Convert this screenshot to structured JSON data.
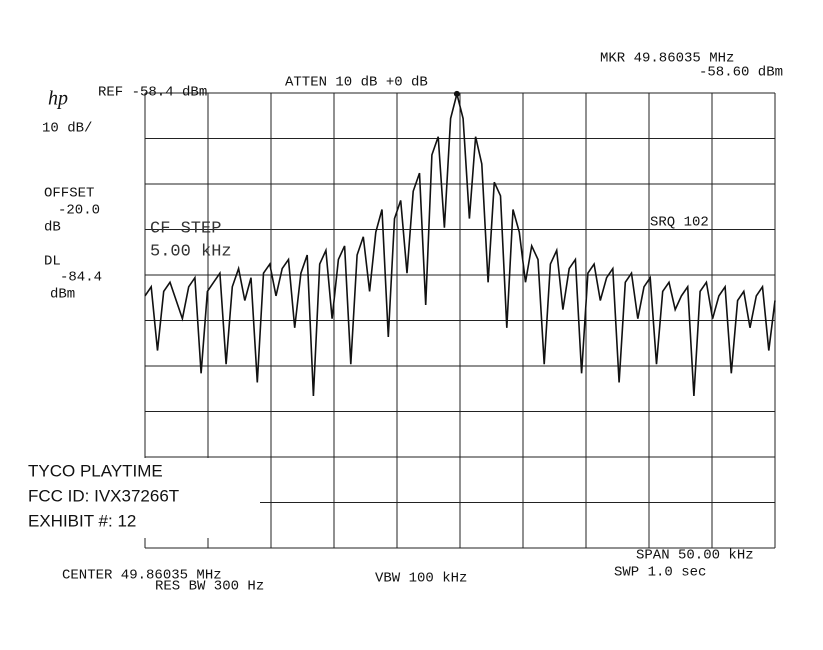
{
  "chart_data": {
    "type": "line",
    "header": {
      "logo": "hp",
      "ref": "REF -58.4 dBm",
      "atten": "ATTEN 10 dB +0 dB",
      "marker_freq": "MKR 49.86035 MHz",
      "marker_level": "-58.60 dBm"
    },
    "left": {
      "scale": "10 dB/",
      "offset_label": "OFFSET",
      "offset_value": "-20.0",
      "offset_unit": "dB",
      "dl_label": "DL",
      "dl_value": "-84.4",
      "dl_unit": "dBm"
    },
    "cf_step_label": "CF STEP",
    "cf_step_value": "5.00 kHz",
    "srq": "SRQ 102",
    "footer": {
      "center": "CENTER 49.86035 MHz",
      "res_bw": "RES BW 300 Hz",
      "vbw": "VBW 100 kHz",
      "span": "SPAN 50.00 kHz",
      "swp": "SWP 1.0 sec"
    },
    "exhibit": [
      "TYCO PLAYTIME",
      "FCC ID:  IVX37266T",
      "EXHIBIT #:  12"
    ],
    "color": "#111111",
    "ylim": [
      -158.4,
      -58.4
    ],
    "values": [
      -103,
      -101,
      -115,
      -102,
      -100,
      -104,
      -108,
      -101,
      -99,
      -120,
      -102,
      -100,
      -98,
      -118,
      -101,
      -97,
      -104,
      -99,
      -122,
      -98,
      -96,
      -103,
      -97,
      -95,
      -110,
      -98,
      -94,
      -125,
      -96,
      -93,
      -108,
      -95,
      -92,
      -118,
      -94,
      -90,
      -102,
      -89,
      -84,
      -112,
      -86,
      -82,
      -98,
      -80,
      -76,
      -105,
      -72,
      -68,
      -88,
      -64,
      -58.6,
      -64,
      -86,
      -68,
      -74,
      -100,
      -78,
      -81,
      -110,
      -84,
      -89,
      -100,
      -92,
      -95,
      -118,
      -96,
      -93,
      -106,
      -97,
      -95,
      -120,
      -98,
      -96,
      -104,
      -99,
      -97,
      -122,
      -100,
      -98,
      -108,
      -101,
      -99,
      -118,
      -102,
      -100,
      -106,
      -103,
      -101,
      -125,
      -102,
      -100,
      -108,
      -103,
      -101,
      -120,
      -104,
      -102,
      -110,
      -103,
      -101,
      -115,
      -104
    ]
  }
}
